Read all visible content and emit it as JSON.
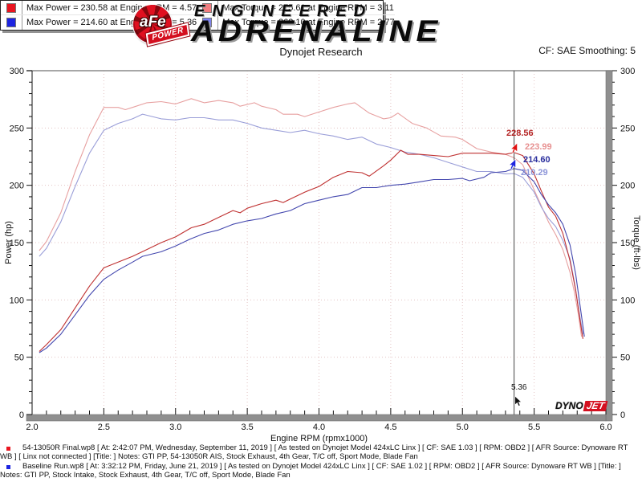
{
  "header": {
    "logo_afe": "aFe",
    "logo_power": "POWER",
    "brand_top": "ENGINEERED",
    "brand_main": "ADRENALINE",
    "subtitle": "Dynojet Research",
    "smoothing": "CF: SAE Smoothing: 5"
  },
  "watermark": {
    "dyno": "DYNO",
    "jet": "JET"
  },
  "chart_data": {
    "type": "line",
    "title": "Dynojet Research",
    "xlabel": "Engine RPM (rpmx1000)",
    "ylabel_left": "Power (hp)",
    "ylabel_right": "Torque (ft-lbs)",
    "xlim": [
      2.0,
      6.0
    ],
    "ylim": [
      0,
      300
    ],
    "x_major_ticks": [
      2.0,
      2.5,
      3.0,
      3.5,
      4.0,
      4.5,
      5.0,
      5.5,
      6.0
    ],
    "x_minor_step": 0.1,
    "y_major_ticks": [
      0,
      50,
      100,
      150,
      200,
      250,
      300
    ],
    "y_minor_step": 10,
    "grid": "dotted",
    "grid_color": "#e3c3c3",
    "legend_position": "bottom-center",
    "cursor": {
      "rpm": 5.36,
      "label": "5.36",
      "callouts": [
        {
          "text": "228.56",
          "color": "#b52525",
          "series": "power_final"
        },
        {
          "text": "223.99",
          "color": "#e79090",
          "series": "torque_final"
        },
        {
          "text": "214.60",
          "color": "#2b2f9e",
          "series": "power_baseline"
        },
        {
          "text": "210.29",
          "color": "#8c94d8",
          "series": "torque_baseline"
        }
      ]
    },
    "series": [
      {
        "id": "torque_final",
        "name": "Torque - 54-13050R Final",
        "color": "#e7a0a0",
        "points": [
          [
            2.05,
            143
          ],
          [
            2.1,
            151
          ],
          [
            2.2,
            176
          ],
          [
            2.3,
            212
          ],
          [
            2.4,
            244
          ],
          [
            2.5,
            268
          ],
          [
            2.6,
            268
          ],
          [
            2.65,
            266
          ],
          [
            2.7,
            268
          ],
          [
            2.8,
            272
          ],
          [
            2.9,
            273
          ],
          [
            3.0,
            271
          ],
          [
            3.11,
            275.6
          ],
          [
            3.2,
            272
          ],
          [
            3.3,
            274
          ],
          [
            3.4,
            272
          ],
          [
            3.45,
            269
          ],
          [
            3.55,
            272
          ],
          [
            3.6,
            269
          ],
          [
            3.7,
            266
          ],
          [
            3.75,
            262
          ],
          [
            3.85,
            262
          ],
          [
            3.9,
            260
          ],
          [
            4.0,
            264
          ],
          [
            4.1,
            268
          ],
          [
            4.2,
            271
          ],
          [
            4.25,
            272
          ],
          [
            4.35,
            263
          ],
          [
            4.45,
            258
          ],
          [
            4.5,
            259
          ],
          [
            4.55,
            263
          ],
          [
            4.65,
            254
          ],
          [
            4.75,
            250
          ],
          [
            4.85,
            243
          ],
          [
            4.95,
            242
          ],
          [
            5.0,
            240
          ],
          [
            5.1,
            232
          ],
          [
            5.2,
            229
          ],
          [
            5.3,
            227
          ],
          [
            5.36,
            224
          ],
          [
            5.42,
            218
          ],
          [
            5.5,
            196
          ],
          [
            5.55,
            182
          ],
          [
            5.6,
            168
          ],
          [
            5.65,
            157
          ],
          [
            5.7,
            144
          ],
          [
            5.75,
            124
          ],
          [
            5.78,
            107
          ],
          [
            5.81,
            86
          ],
          [
            5.83,
            68
          ]
        ]
      },
      {
        "id": "torque_baseline",
        "name": "Torque - Baseline Run",
        "color": "#9a9ed8",
        "points": [
          [
            2.05,
            138
          ],
          [
            2.1,
            145
          ],
          [
            2.2,
            168
          ],
          [
            2.3,
            199
          ],
          [
            2.4,
            228
          ],
          [
            2.5,
            248
          ],
          [
            2.6,
            254
          ],
          [
            2.7,
            258
          ],
          [
            2.77,
            262.1
          ],
          [
            2.9,
            258
          ],
          [
            3.0,
            257
          ],
          [
            3.1,
            259
          ],
          [
            3.2,
            259
          ],
          [
            3.3,
            257
          ],
          [
            3.4,
            257
          ],
          [
            3.5,
            254
          ],
          [
            3.6,
            250
          ],
          [
            3.7,
            248
          ],
          [
            3.8,
            246
          ],
          [
            3.9,
            248
          ],
          [
            4.0,
            245
          ],
          [
            4.1,
            243
          ],
          [
            4.2,
            240
          ],
          [
            4.3,
            242
          ],
          [
            4.4,
            236
          ],
          [
            4.5,
            233
          ],
          [
            4.6,
            229
          ],
          [
            4.7,
            227
          ],
          [
            4.8,
            224
          ],
          [
            4.9,
            220
          ],
          [
            5.0,
            216
          ],
          [
            5.1,
            212
          ],
          [
            5.2,
            212
          ],
          [
            5.3,
            210
          ],
          [
            5.36,
            210.3
          ],
          [
            5.42,
            207
          ],
          [
            5.5,
            194
          ],
          [
            5.55,
            181
          ],
          [
            5.6,
            171
          ],
          [
            5.65,
            164
          ],
          [
            5.7,
            152
          ],
          [
            5.75,
            136
          ],
          [
            5.78,
            116
          ],
          [
            5.81,
            92
          ],
          [
            5.84,
            70
          ]
        ]
      },
      {
        "id": "power_final",
        "name": "Power - 54-13050R Final",
        "color": "#bf3030",
        "points": [
          [
            2.05,
            55
          ],
          [
            2.1,
            61
          ],
          [
            2.2,
            74
          ],
          [
            2.3,
            93
          ],
          [
            2.4,
            112
          ],
          [
            2.5,
            128
          ],
          [
            2.6,
            133
          ],
          [
            2.7,
            138
          ],
          [
            2.8,
            144
          ],
          [
            2.9,
            150
          ],
          [
            3.0,
            155
          ],
          [
            3.11,
            163
          ],
          [
            3.2,
            166
          ],
          [
            3.3,
            172
          ],
          [
            3.4,
            178
          ],
          [
            3.45,
            176
          ],
          [
            3.5,
            180
          ],
          [
            3.6,
            184
          ],
          [
            3.7,
            187
          ],
          [
            3.75,
            185
          ],
          [
            3.8,
            188
          ],
          [
            3.9,
            194
          ],
          [
            4.0,
            199
          ],
          [
            4.1,
            207
          ],
          [
            4.2,
            212
          ],
          [
            4.3,
            211
          ],
          [
            4.35,
            208
          ],
          [
            4.45,
            217
          ],
          [
            4.5,
            222
          ],
          [
            4.57,
            230.6
          ],
          [
            4.62,
            227
          ],
          [
            4.7,
            227
          ],
          [
            4.8,
            226
          ],
          [
            4.9,
            225
          ],
          [
            5.0,
            228
          ],
          [
            5.1,
            228
          ],
          [
            5.2,
            228
          ],
          [
            5.3,
            227
          ],
          [
            5.36,
            228.6
          ],
          [
            5.42,
            226
          ],
          [
            5.5,
            210
          ],
          [
            5.55,
            195
          ],
          [
            5.6,
            181
          ],
          [
            5.65,
            173
          ],
          [
            5.7,
            158
          ],
          [
            5.75,
            134
          ],
          [
            5.79,
            108
          ],
          [
            5.82,
            82
          ],
          [
            5.84,
            66
          ]
        ]
      },
      {
        "id": "power_baseline",
        "name": "Power - Baseline Run",
        "color": "#4347ae",
        "points": [
          [
            2.05,
            54
          ],
          [
            2.1,
            58
          ],
          [
            2.2,
            70
          ],
          [
            2.3,
            87
          ],
          [
            2.4,
            104
          ],
          [
            2.5,
            118
          ],
          [
            2.6,
            126
          ],
          [
            2.7,
            133
          ],
          [
            2.77,
            138
          ],
          [
            2.9,
            142
          ],
          [
            3.0,
            147
          ],
          [
            3.1,
            153
          ],
          [
            3.2,
            158
          ],
          [
            3.3,
            161
          ],
          [
            3.4,
            166
          ],
          [
            3.5,
            169
          ],
          [
            3.6,
            171
          ],
          [
            3.7,
            175
          ],
          [
            3.8,
            178
          ],
          [
            3.9,
            184
          ],
          [
            4.0,
            187
          ],
          [
            4.1,
            190
          ],
          [
            4.2,
            192
          ],
          [
            4.3,
            198
          ],
          [
            4.4,
            198
          ],
          [
            4.5,
            200
          ],
          [
            4.6,
            201
          ],
          [
            4.7,
            203
          ],
          [
            4.8,
            205
          ],
          [
            4.9,
            205
          ],
          [
            5.0,
            206
          ],
          [
            5.05,
            204
          ],
          [
            5.15,
            207
          ],
          [
            5.2,
            211
          ],
          [
            5.3,
            212
          ],
          [
            5.36,
            214.6
          ],
          [
            5.42,
            213
          ],
          [
            5.5,
            203
          ],
          [
            5.55,
            192
          ],
          [
            5.6,
            183
          ],
          [
            5.65,
            176
          ],
          [
            5.7,
            166
          ],
          [
            5.75,
            148
          ],
          [
            5.79,
            122
          ],
          [
            5.82,
            95
          ],
          [
            5.85,
            68
          ]
        ]
      }
    ],
    "legend": {
      "entries": [
        {
          "swatch": "#ea1520",
          "label": "Max Power = 230.58 at Engine RPM = 4.57"
        },
        {
          "swatch": "#1d24e0",
          "label": "Max Power = 214.60 at Engine RPM = 5.36"
        },
        {
          "swatch": "#f27d80",
          "label": "Max Torque = 275.61 at Engine RPM = 3.11"
        },
        {
          "swatch": "#7d82f2",
          "label": "Max Torque = 262.10 at Engine RPM = 2.77"
        }
      ]
    }
  },
  "footer": {
    "runs": [
      {
        "marker_color": "#ea1520",
        "text": "54-13050R Final.wp8 [ At: 2:42:07 PM, Wednesday, September 11, 2019 ] [ As tested on Dynojet Model 424xLC Linx ] [ CF: SAE 1.03 ] [ RPM: OBD2 ] [ AFR Source: Dynoware RT WB ] [ Linx not connected ] [Title: ]  Notes: GTI PP, 54-13050R AIS, Stock Exhaust, 4th Gear, T/C off, Sport Mode, Blade Fan"
      },
      {
        "marker_color": "#1d24e0",
        "text": "Baseline Run.wp8 [ At: 3:32:12 PM, Friday, June 21, 2019 ] [ As tested on Dynojet Model 424xLC Linx ] [ CF: SAE 1.02 ] [ RPM: OBD2 ] [ AFR Source: Dynoware RT WB ] [Title: ]  Notes: GTI PP, Stock Intake, Stock Exhaust, 4th Gear, T/C off, Sport Mode, Blade Fan"
      }
    ]
  }
}
